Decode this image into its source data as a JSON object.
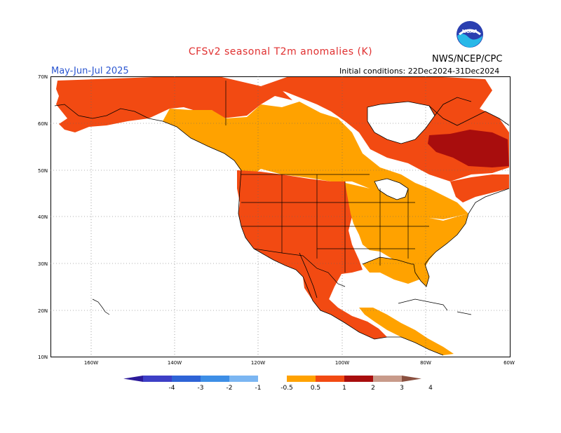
{
  "header": {
    "title": "CFSv2 seasonal T2m anomalies (K)",
    "period": "May-Jun-Jul 2025",
    "initial_conditions": "Initial conditions: 22Dec2024-31Dec2024",
    "agency": "NWS/NCEP/CPC",
    "logo_text": "NOAA",
    "logo_icon": "noaa-logo-icon"
  },
  "map": {
    "projection": "cylindrical equidistant",
    "lon_range": [
      -190,
      -60
    ],
    "lat_range": [
      10,
      70
    ],
    "latitude_labels": [
      "70N",
      "60N",
      "50N",
      "40N",
      "30N",
      "20N",
      "10N"
    ],
    "longitude_labels": [
      "160W",
      "140W",
      "120W",
      "100W",
      "80W",
      "60W"
    ],
    "gridlines": "dotted",
    "anomaly_classes": [
      {
        "range": "0.5 to 1",
        "color": "#ffa200"
      },
      {
        "range": "1 to 2",
        "color": "#f24a12"
      },
      {
        "range": "2 to 3",
        "color": "#a80d0d"
      }
    ]
  },
  "legend": {
    "levels": [
      "-4",
      "-3",
      "-2",
      "-1",
      "-0.5",
      "0.5",
      "1",
      "2",
      "3",
      "4"
    ],
    "colors": [
      "#2c1a9a",
      "#3d3fc6",
      "#2e63d6",
      "#3d8ee6",
      "#7bb6f2",
      "#ffffff",
      "#ffa200",
      "#f24a12",
      "#a80d0d",
      "#c89a8a",
      "#8a5040"
    ]
  }
}
